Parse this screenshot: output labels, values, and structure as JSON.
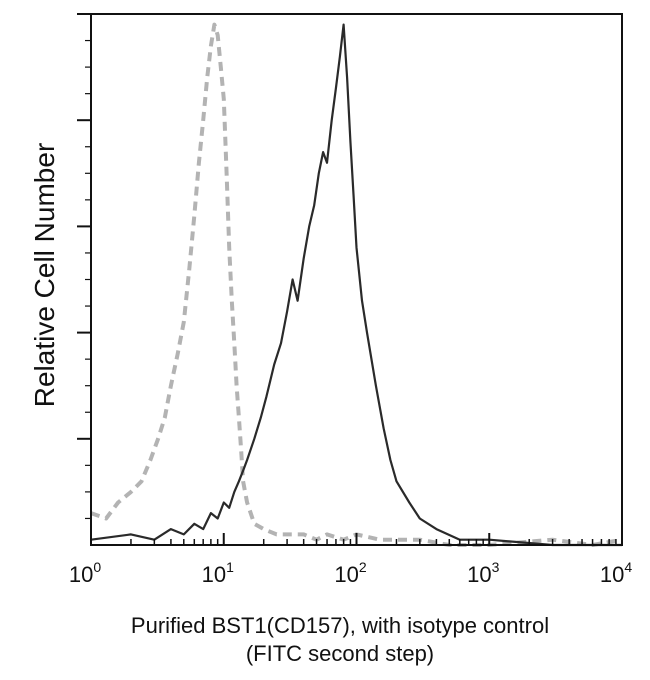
{
  "chart_data": {
    "type": "line",
    "title": "",
    "xlabel": "Purified BST1(CD157), with isotype control",
    "xlabel_line2": "(FITC second step)",
    "ylabel": "Relative Cell Number",
    "x_scale": "log",
    "xlim": [
      1,
      10000
    ],
    "ylim": [
      0,
      100
    ],
    "x_ticks": [
      {
        "base": "10",
        "exp": "0",
        "value": 1
      },
      {
        "base": "10",
        "exp": "1",
        "value": 10
      },
      {
        "base": "10",
        "exp": "2",
        "value": 100
      },
      {
        "base": "10",
        "exp": "3",
        "value": 1000
      },
      {
        "base": "10",
        "exp": "4",
        "value": 10000
      }
    ],
    "y_ticks_count": 5,
    "y_ticks_labeled": false,
    "grid": false,
    "legend": "none",
    "series": [
      {
        "style": "dashed",
        "color": "#b3b3b3",
        "x": [
          1.0,
          1.3,
          1.6,
          2.0,
          2.4,
          2.8,
          3.2,
          3.6,
          4.0,
          4.5,
          5.0,
          5.5,
          6.0,
          6.5,
          7.0,
          7.5,
          8.0,
          8.5,
          9.0,
          9.5,
          10.0,
          10.5,
          11.0,
          11.5,
          12.0,
          12.5,
          13.0,
          13.5,
          14.0,
          15.0,
          17.0,
          20.0,
          25.0,
          30.0,
          40.0,
          50.0,
          60.0,
          80.0,
          100.0,
          150.0,
          200.0,
          300.0,
          500.0,
          1000.0,
          3000.0,
          6000.0,
          10000.0
        ],
        "y": [
          6,
          5,
          8,
          10,
          12,
          16,
          20,
          24,
          30,
          36,
          42,
          52,
          62,
          72,
          80,
          88,
          94,
          98,
          96,
          90,
          84,
          70,
          56,
          46,
          38,
          30,
          24,
          18,
          12,
          8,
          4,
          3,
          2,
          2,
          2,
          1,
          2,
          1,
          2,
          1,
          1,
          1,
          0,
          0,
          1,
          0,
          1
        ]
      },
      {
        "style": "solid",
        "color": "#2a2a2a",
        "x": [
          1.0,
          2.0,
          3.0,
          4.0,
          5.0,
          6.0,
          7.0,
          8.0,
          9.0,
          10.0,
          11.0,
          12.0,
          13.0,
          14.0,
          15.0,
          17.0,
          19.0,
          21.0,
          24.0,
          27.0,
          30.0,
          33.0,
          36.0,
          40.0,
          44.0,
          48.0,
          52.0,
          56.0,
          60.0,
          65.0,
          70.0,
          75.0,
          80.0,
          85.0,
          90.0,
          95.0,
          100.0,
          110.0,
          120.0,
          140.0,
          160.0,
          180.0,
          200.0,
          250.0,
          300.0,
          400.0,
          600.0,
          1000.0,
          3000.0,
          10000.0
        ],
        "y": [
          1,
          2,
          1,
          3,
          2,
          4,
          3,
          6,
          5,
          8,
          7,
          10,
          12,
          14,
          16,
          20,
          24,
          28,
          34,
          38,
          44,
          50,
          46,
          54,
          60,
          64,
          70,
          74,
          72,
          80,
          86,
          92,
          98,
          88,
          76,
          66,
          56,
          46,
          40,
          30,
          22,
          16,
          12,
          8,
          5,
          3,
          1,
          1,
          0,
          0
        ]
      }
    ]
  }
}
